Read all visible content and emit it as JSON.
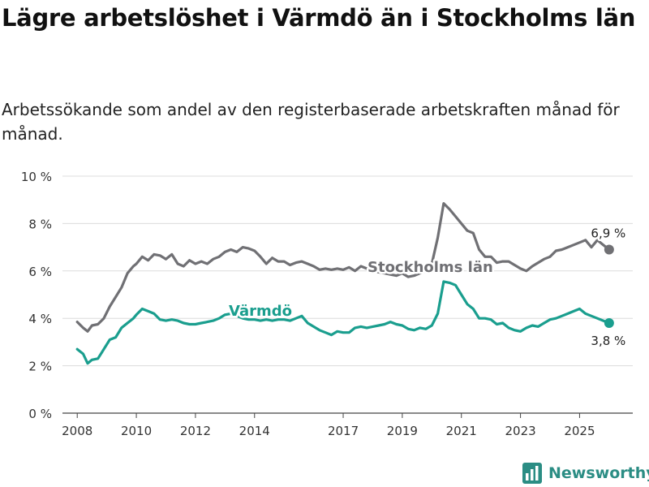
{
  "title": "Lägre arbetslöshet i Värmdö än i Stockholms län",
  "subtitle": "Arbetssökande som andel av den registerbaserade arbetskraften månad för månad.",
  "brand": {
    "name": "Newsworthy",
    "icon": "bar-chart-logo-icon"
  },
  "colors": {
    "stockholm": "#707074",
    "varmdo": "#1a9e8e",
    "grid": "#dcdcdc",
    "text": "#333333"
  },
  "chart_data": {
    "type": "line",
    "title": "Lägre arbetslöshet i Värmdö än i Stockholms län",
    "subtitle": "Arbetssökande som andel av den registerbaserade arbetskraften månad för månad.",
    "xlabel": "",
    "ylabel": "",
    "xlim": [
      2007.5,
      2026.8
    ],
    "ylim": [
      0,
      10
    ],
    "grid": true,
    "x_ticks": [
      2008,
      2010,
      2012,
      2014,
      2017,
      2019,
      2021,
      2023,
      2025
    ],
    "x_tick_labels": [
      "2008",
      "2010",
      "2012",
      "2014",
      "2017",
      "2019",
      "2021",
      "2023",
      "2025"
    ],
    "y_ticks": [
      0,
      2,
      4,
      6,
      8,
      10
    ],
    "y_tick_labels": [
      "0 %",
      "2 %",
      "4 %",
      "6 %",
      "8 %",
      "10 %"
    ],
    "series": [
      {
        "name": "Stockholms län",
        "label": "Stockholms län",
        "end_label": "6,9 %",
        "x": [
          2008.0,
          2008.2,
          2008.35,
          2008.5,
          2008.7,
          2008.9,
          2009.1,
          2009.3,
          2009.5,
          2009.7,
          2009.9,
          2010.0,
          2010.2,
          2010.4,
          2010.6,
          2010.8,
          2011.0,
          2011.2,
          2011.4,
          2011.6,
          2011.8,
          2012.0,
          2012.2,
          2012.4,
          2012.6,
          2012.8,
          2013.0,
          2013.2,
          2013.4,
          2013.6,
          2013.8,
          2014.0,
          2014.2,
          2014.4,
          2014.6,
          2014.8,
          2015.0,
          2015.2,
          2015.4,
          2015.6,
          2015.8,
          2016.0,
          2016.2,
          2016.4,
          2016.6,
          2016.8,
          2017.0,
          2017.2,
          2017.4,
          2017.6,
          2017.8,
          2018.0,
          2018.2,
          2018.4,
          2018.6,
          2018.8,
          2019.0,
          2019.2,
          2019.4,
          2019.6,
          2019.8,
          2020.0,
          2020.2,
          2020.4,
          2020.6,
          2020.8,
          2021.0,
          2021.2,
          2021.4,
          2021.6,
          2021.8,
          2022.0,
          2022.2,
          2022.4,
          2022.6,
          2022.8,
          2023.0,
          2023.2,
          2023.4,
          2023.6,
          2023.8,
          2024.0,
          2024.2,
          2024.4,
          2024.6,
          2024.8,
          2025.0,
          2025.2,
          2025.4,
          2025.6,
          2025.8,
          2026.0
        ],
        "values": [
          3.85,
          3.6,
          3.45,
          3.7,
          3.75,
          4.0,
          4.5,
          4.9,
          5.3,
          5.9,
          6.2,
          6.3,
          6.6,
          6.45,
          6.7,
          6.65,
          6.5,
          6.7,
          6.3,
          6.2,
          6.45,
          6.3,
          6.4,
          6.3,
          6.5,
          6.6,
          6.8,
          6.9,
          6.8,
          7.0,
          6.95,
          6.85,
          6.6,
          6.3,
          6.55,
          6.4,
          6.4,
          6.25,
          6.35,
          6.4,
          6.3,
          6.2,
          6.05,
          6.1,
          6.05,
          6.1,
          6.05,
          6.15,
          6.0,
          6.2,
          6.1,
          6.0,
          5.95,
          5.9,
          5.85,
          5.8,
          5.9,
          5.75,
          5.8,
          5.9,
          6.0,
          6.3,
          7.4,
          8.85,
          8.6,
          8.3,
          8.0,
          7.7,
          7.6,
          6.9,
          6.6,
          6.6,
          6.35,
          6.4,
          6.4,
          6.25,
          6.1,
          6.0,
          6.2,
          6.35,
          6.5,
          6.6,
          6.85,
          6.9,
          7.0,
          7.1,
          7.2,
          7.3,
          7.0,
          7.3,
          7.1,
          6.9
        ]
      },
      {
        "name": "Värmdö",
        "label": "Värmdö",
        "end_label": "3,8 %",
        "x": [
          2008.0,
          2008.2,
          2008.35,
          2008.5,
          2008.7,
          2008.9,
          2009.1,
          2009.3,
          2009.5,
          2009.7,
          2009.9,
          2010.0,
          2010.2,
          2010.4,
          2010.6,
          2010.8,
          2011.0,
          2011.2,
          2011.4,
          2011.6,
          2011.8,
          2012.0,
          2012.2,
          2012.4,
          2012.6,
          2012.8,
          2013.0,
          2013.2,
          2013.4,
          2013.6,
          2013.8,
          2014.0,
          2014.2,
          2014.4,
          2014.6,
          2014.8,
          2015.0,
          2015.2,
          2015.4,
          2015.6,
          2015.8,
          2016.0,
          2016.2,
          2016.4,
          2016.6,
          2016.8,
          2017.0,
          2017.2,
          2017.4,
          2017.6,
          2017.8,
          2018.0,
          2018.2,
          2018.4,
          2018.6,
          2018.8,
          2019.0,
          2019.2,
          2019.4,
          2019.6,
          2019.8,
          2020.0,
          2020.2,
          2020.4,
          2020.6,
          2020.8,
          2021.0,
          2021.2,
          2021.4,
          2021.6,
          2021.8,
          2022.0,
          2022.2,
          2022.4,
          2022.6,
          2022.8,
          2023.0,
          2023.2,
          2023.4,
          2023.6,
          2023.8,
          2024.0,
          2024.2,
          2024.4,
          2024.6,
          2024.8,
          2025.0,
          2025.2,
          2025.4,
          2025.6,
          2025.8,
          2026.0
        ],
        "values": [
          2.7,
          2.5,
          2.1,
          2.25,
          2.3,
          2.7,
          3.1,
          3.2,
          3.6,
          3.8,
          4.0,
          4.15,
          4.4,
          4.3,
          4.2,
          3.95,
          3.9,
          3.95,
          3.9,
          3.8,
          3.75,
          3.75,
          3.8,
          3.85,
          3.9,
          4.0,
          4.15,
          4.2,
          4.1,
          4.0,
          3.95,
          3.95,
          3.9,
          3.95,
          3.9,
          3.95,
          3.95,
          3.9,
          4.0,
          4.1,
          3.8,
          3.65,
          3.5,
          3.4,
          3.3,
          3.45,
          3.4,
          3.4,
          3.6,
          3.65,
          3.6,
          3.65,
          3.7,
          3.75,
          3.85,
          3.75,
          3.7,
          3.55,
          3.5,
          3.6,
          3.55,
          3.7,
          4.2,
          5.55,
          5.5,
          5.4,
          5.0,
          4.6,
          4.4,
          4.0,
          4.0,
          3.95,
          3.75,
          3.8,
          3.6,
          3.5,
          3.45,
          3.6,
          3.7,
          3.65,
          3.8,
          3.95,
          4.0,
          4.1,
          4.2,
          4.3,
          4.4,
          4.2,
          4.1,
          4.0,
          3.9,
          3.8
        ]
      }
    ]
  }
}
